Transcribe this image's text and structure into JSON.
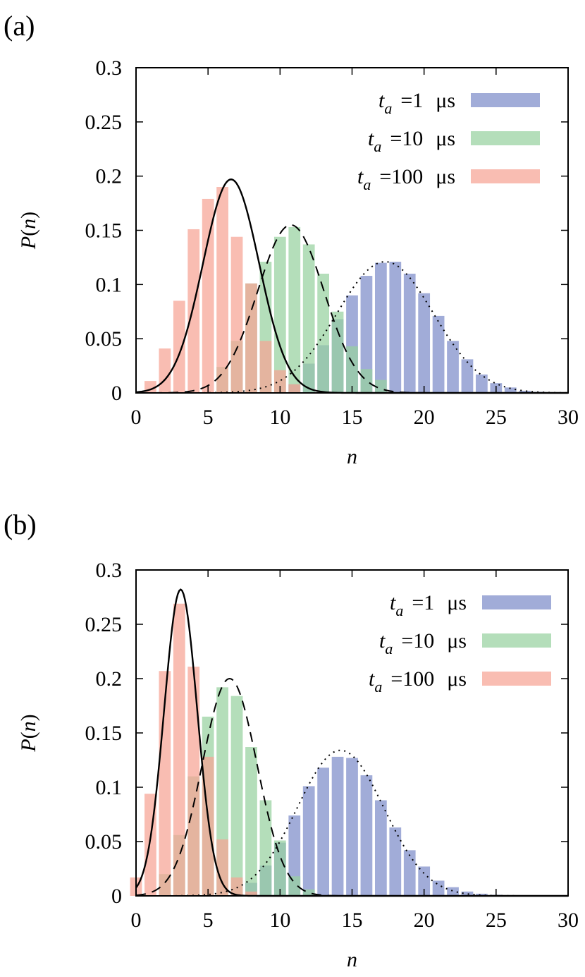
{
  "chart_data": [
    {
      "type": "bar",
      "panel_label": "(a)",
      "xlabel": "n",
      "ylabel": "P(n)",
      "xlim": [
        0,
        30
      ],
      "ylim": [
        0,
        0.3
      ],
      "xticks": [
        "0",
        "5",
        "10",
        "15",
        "20",
        "25",
        "30"
      ],
      "yticks": [
        "0",
        "0.05",
        "0.1",
        "0.15",
        "0.2",
        "0.25",
        "0.3"
      ],
      "legend_position": "top-right",
      "series": [
        {
          "name_ta": "=1",
          "unit": "μs",
          "color": "#7d8cc9",
          "bars": [
            [
              11,
              0.008
            ],
            [
              12,
              0.027
            ],
            [
              13,
              0.044
            ],
            [
              14,
              0.068
            ],
            [
              15,
              0.09
            ],
            [
              16,
              0.108
            ],
            [
              17,
              0.12
            ],
            [
              18,
              0.121
            ],
            [
              19,
              0.11
            ],
            [
              20,
              0.092
            ],
            [
              21,
              0.071
            ],
            [
              22,
              0.048
            ],
            [
              23,
              0.031
            ],
            [
              24,
              0.017
            ],
            [
              25,
              0.009
            ],
            [
              26,
              0.005
            ],
            [
              27,
              0.002
            ],
            [
              28,
              0.001
            ]
          ],
          "curve_style": "dotted",
          "curve_mu": 17.3,
          "curve_sigma": 3.35,
          "curve_peak": 0.121
        },
        {
          "name_ta": "=10",
          "unit": "μs",
          "color": "#97d1a0",
          "bars": [
            [
              6,
              0.024
            ],
            [
              7,
              0.048
            ],
            [
              8,
              0.101
            ],
            [
              9,
              0.121
            ],
            [
              10,
              0.144
            ],
            [
              11,
              0.153
            ],
            [
              12,
              0.137
            ],
            [
              13,
              0.11
            ],
            [
              14,
              0.075
            ],
            [
              15,
              0.043
            ],
            [
              16,
              0.022
            ],
            [
              17,
              0.012
            ]
          ],
          "curve_style": "dashed",
          "curve_mu": 10.75,
          "curve_sigma": 2.3,
          "curve_peak": 0.155
        },
        {
          "name_ta": "=100",
          "unit": "μs",
          "color": "#f6a394",
          "bars": [
            [
              1,
              0.011
            ],
            [
              2,
              0.041
            ],
            [
              3,
              0.085
            ],
            [
              4,
              0.151
            ],
            [
              5,
              0.179
            ],
            [
              6,
              0.19
            ],
            [
              7,
              0.144
            ],
            [
              8,
              0.101
            ],
            [
              9,
              0.048
            ],
            [
              10,
              0.021
            ],
            [
              11,
              0.008
            ]
          ],
          "curve_style": "solid",
          "curve_mu": 6.6,
          "curve_sigma": 1.95,
          "curve_peak": 0.197
        }
      ]
    },
    {
      "type": "bar",
      "panel_label": "(b)",
      "xlabel": "n",
      "ylabel": "P(n)",
      "xlim": [
        0,
        30
      ],
      "ylim": [
        0,
        0.3
      ],
      "xticks": [
        "0",
        "5",
        "10",
        "15",
        "20",
        "25",
        "30"
      ],
      "yticks": [
        "0",
        "0.05",
        "0.1",
        "0.15",
        "0.2",
        "0.25",
        "0.3"
      ],
      "legend_position": "top-right",
      "series": [
        {
          "name_ta": "=1",
          "unit": "μs",
          "color": "#7d8cc9",
          "bars": [
            [
              7,
              0.002
            ],
            [
              8,
              0.012
            ],
            [
              9,
              0.028
            ],
            [
              10,
              0.049
            ],
            [
              11,
              0.074
            ],
            [
              12,
              0.101
            ],
            [
              13,
              0.118
            ],
            [
              14,
              0.128
            ],
            [
              15,
              0.127
            ],
            [
              16,
              0.111
            ],
            [
              17,
              0.088
            ],
            [
              18,
              0.063
            ],
            [
              19,
              0.042
            ],
            [
              20,
              0.027
            ],
            [
              21,
              0.014
            ],
            [
              22,
              0.008
            ],
            [
              23,
              0.004
            ],
            [
              24,
              0.002
            ],
            [
              25,
              0.001
            ]
          ],
          "curve_style": "dotted",
          "curve_mu": 14.2,
          "curve_sigma": 3.0,
          "curve_peak": 0.134
        },
        {
          "name_ta": "=10",
          "unit": "μs",
          "color": "#97d1a0",
          "bars": [
            [
              2,
              0.02
            ],
            [
              3,
              0.056
            ],
            [
              4,
              0.11
            ],
            [
              5,
              0.165
            ],
            [
              6,
              0.192
            ],
            [
              7,
              0.184
            ],
            [
              8,
              0.137
            ],
            [
              9,
              0.088
            ],
            [
              10,
              0.051
            ],
            [
              11,
              0.018
            ],
            [
              12,
              0.006
            ]
          ],
          "curve_style": "dashed",
          "curve_mu": 6.5,
          "curve_sigma": 1.9,
          "curve_peak": 0.2
        },
        {
          "name_ta": "=100",
          "unit": "μs",
          "color": "#f6a394",
          "bars": [
            [
              0,
              0.017
            ],
            [
              1,
              0.094
            ],
            [
              2,
              0.207
            ],
            [
              3,
              0.269
            ],
            [
              4,
              0.211
            ],
            [
              5,
              0.128
            ],
            [
              6,
              0.052
            ],
            [
              7,
              0.017
            ],
            [
              8,
              0.004
            ]
          ],
          "curve_style": "solid",
          "curve_mu": 3.1,
          "curve_sigma": 1.15,
          "curve_peak": 0.282
        }
      ]
    }
  ]
}
